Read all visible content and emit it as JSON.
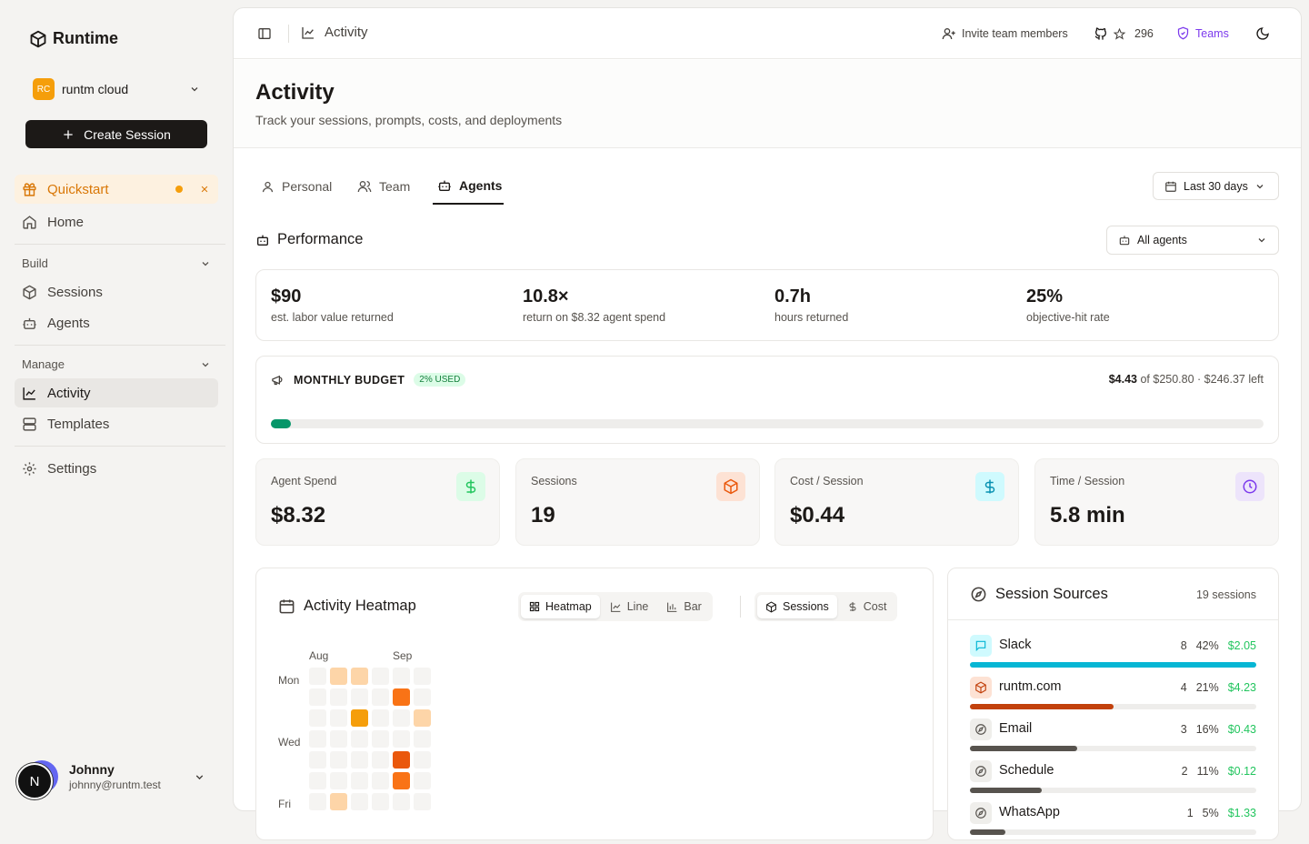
{
  "brand": {
    "name": "Runtime"
  },
  "org": {
    "initials": "RC",
    "name": "runtm cloud"
  },
  "create_label": "Create Session",
  "nav": {
    "quickstart": "Quickstart",
    "home": "Home",
    "build_label": "Build",
    "sessions": "Sessions",
    "agents": "Agents",
    "manage_label": "Manage",
    "activity": "Activity",
    "templates": "Templates",
    "settings": "Settings"
  },
  "user": {
    "initial": "N",
    "name": "Johnny",
    "email": "johnny@runtm.test"
  },
  "topbar": {
    "breadcrumb": "Activity",
    "invite": "Invite team members",
    "stars": "296",
    "teams": "Teams"
  },
  "page": {
    "title": "Activity",
    "subtitle": "Track your sessions, prompts, costs, and deployments"
  },
  "tabs": [
    "Personal",
    "Team",
    "Agents"
  ],
  "active_tab": "Agents",
  "range": "Last 30 days",
  "performance": {
    "title": "Performance",
    "agent_filter": "All agents"
  },
  "metrics": [
    {
      "value": "$90",
      "label": "est. labor value returned"
    },
    {
      "value": "10.8×",
      "label": "return on $8.32 agent spend"
    },
    {
      "value": "0.7h",
      "label": "hours returned"
    },
    {
      "value": "25%",
      "label": "objective-hit rate"
    }
  ],
  "budget": {
    "title": "MONTHLY BUDGET",
    "used_badge": "2% USED",
    "spent": "$4.43",
    "rest": " of $250.80 · $246.37 left",
    "used_fraction": 0.02
  },
  "stats": [
    {
      "label": "Agent Spend",
      "value": "$8.32",
      "icon": "dollar-icon",
      "color": "#22c55e",
      "bg": "#dcfce7"
    },
    {
      "label": "Sessions",
      "value": "19",
      "icon": "box-icon",
      "color": "#ea580c",
      "bg": "#fde2d4"
    },
    {
      "label": "Cost / Session",
      "value": "$0.44",
      "icon": "dollar-icon",
      "color": "#0891b2",
      "bg": "#cffafe"
    },
    {
      "label": "Time / Session",
      "value": "5.8 min",
      "icon": "clock-icon",
      "color": "#7c3aed",
      "bg": "#ede4fb"
    }
  ],
  "heatmap": {
    "title": "Activity Heatmap",
    "views": [
      "Heatmap",
      "Line",
      "Bar"
    ],
    "metrics": [
      "Sessions",
      "Cost"
    ],
    "months": [
      "Aug",
      "Sep"
    ],
    "days": [
      "Mon",
      "Wed",
      "Fri"
    ],
    "levels": [
      [
        0,
        1,
        1,
        0,
        0,
        0
      ],
      [
        0,
        0,
        0,
        0,
        3,
        0
      ],
      [
        0,
        0,
        2,
        0,
        0,
        1
      ],
      [
        0,
        0,
        0,
        0,
        0,
        0
      ],
      [
        0,
        0,
        0,
        0,
        4,
        0
      ],
      [
        0,
        0,
        0,
        0,
        3,
        0
      ],
      [
        0,
        1,
        0,
        0,
        0,
        0
      ]
    ]
  },
  "sources": {
    "title": "Session Sources",
    "total": "19 sessions",
    "items": [
      {
        "name": "Slack",
        "count": "8",
        "pct": "42%",
        "cost": "$2.05",
        "share": 1.0,
        "color": "#06b6d4",
        "bg": "#cffafe",
        "icon": "chat-icon"
      },
      {
        "name": "runtm.com",
        "count": "4",
        "pct": "21%",
        "cost": "$4.23",
        "share": 0.5,
        "color": "#c2410c",
        "bg": "#fde2d4",
        "icon": "box-icon"
      },
      {
        "name": "Email",
        "count": "3",
        "pct": "16%",
        "cost": "$0.43",
        "share": 0.375,
        "color": "#57534e",
        "bg": "#efeeeb",
        "icon": "compass-icon"
      },
      {
        "name": "Schedule",
        "count": "2",
        "pct": "11%",
        "cost": "$0.12",
        "share": 0.25,
        "color": "#57534e",
        "bg": "#efeeeb",
        "icon": "compass-icon"
      },
      {
        "name": "WhatsApp",
        "count": "1",
        "pct": "5%",
        "cost": "$1.33",
        "share": 0.125,
        "color": "#57534e",
        "bg": "#efeeeb",
        "icon": "compass-icon"
      }
    ]
  }
}
